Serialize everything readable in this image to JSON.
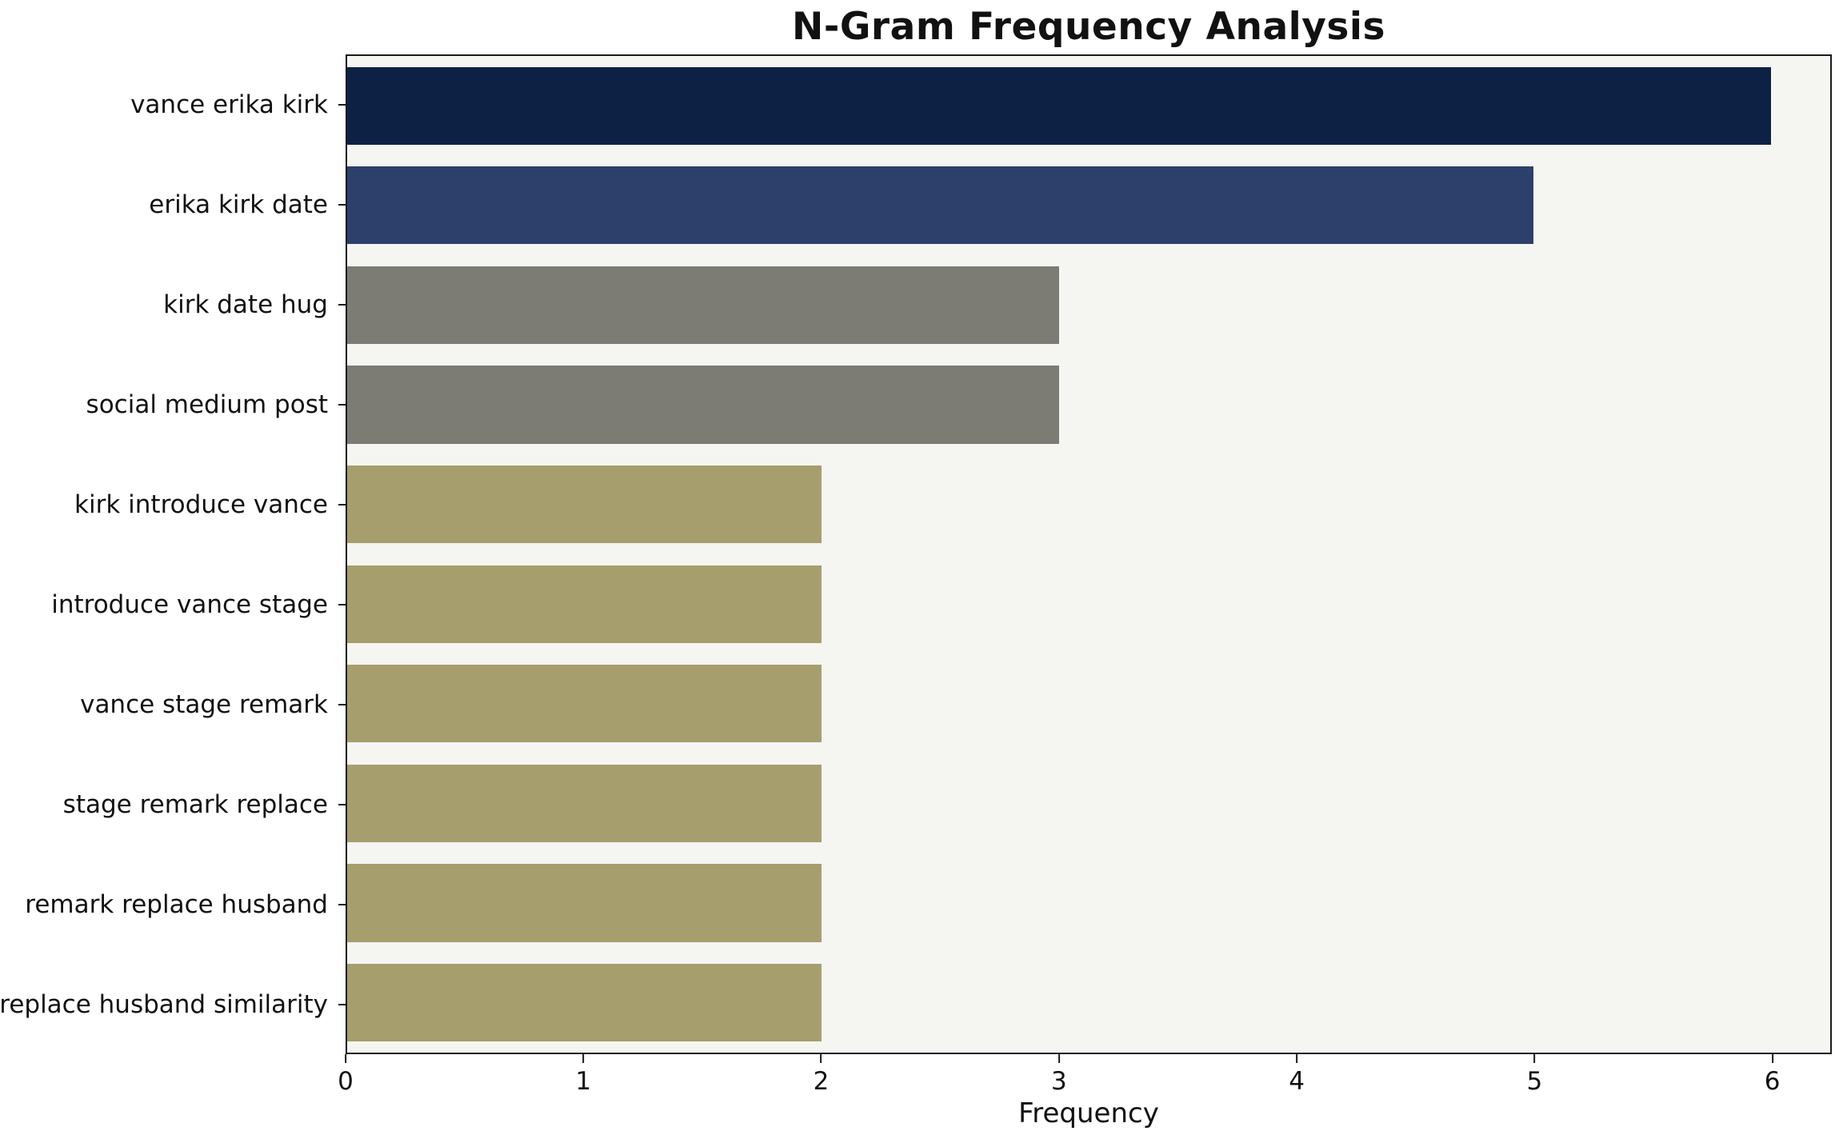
{
  "chart_data": {
    "type": "bar",
    "orientation": "horizontal",
    "title": "N-Gram Frequency Analysis",
    "xlabel": "Frequency",
    "ylabel": "",
    "categories": [
      "vance erika kirk",
      "erika kirk date",
      "kirk date hug",
      "social medium post",
      "kirk introduce vance",
      "introduce vance stage",
      "vance stage remark",
      "stage remark replace",
      "remark replace husband",
      "replace husband similarity"
    ],
    "values": [
      6,
      5,
      3,
      3,
      2,
      2,
      2,
      2,
      2,
      2
    ],
    "bar_colors": [
      "#0d2145",
      "#2d3f6b",
      "#7c7b74",
      "#7c7b74",
      "#a69e6d",
      "#a69e6d",
      "#a69e6d",
      "#a69e6d",
      "#a69e6d",
      "#a69e6d"
    ],
    "xlim": [
      0,
      6.25
    ],
    "xticks": [
      0,
      1,
      2,
      3,
      4,
      5,
      6
    ],
    "grid": false,
    "legend": false,
    "plot_background": "#f5f5f2",
    "figure_background": "#ffffff"
  }
}
